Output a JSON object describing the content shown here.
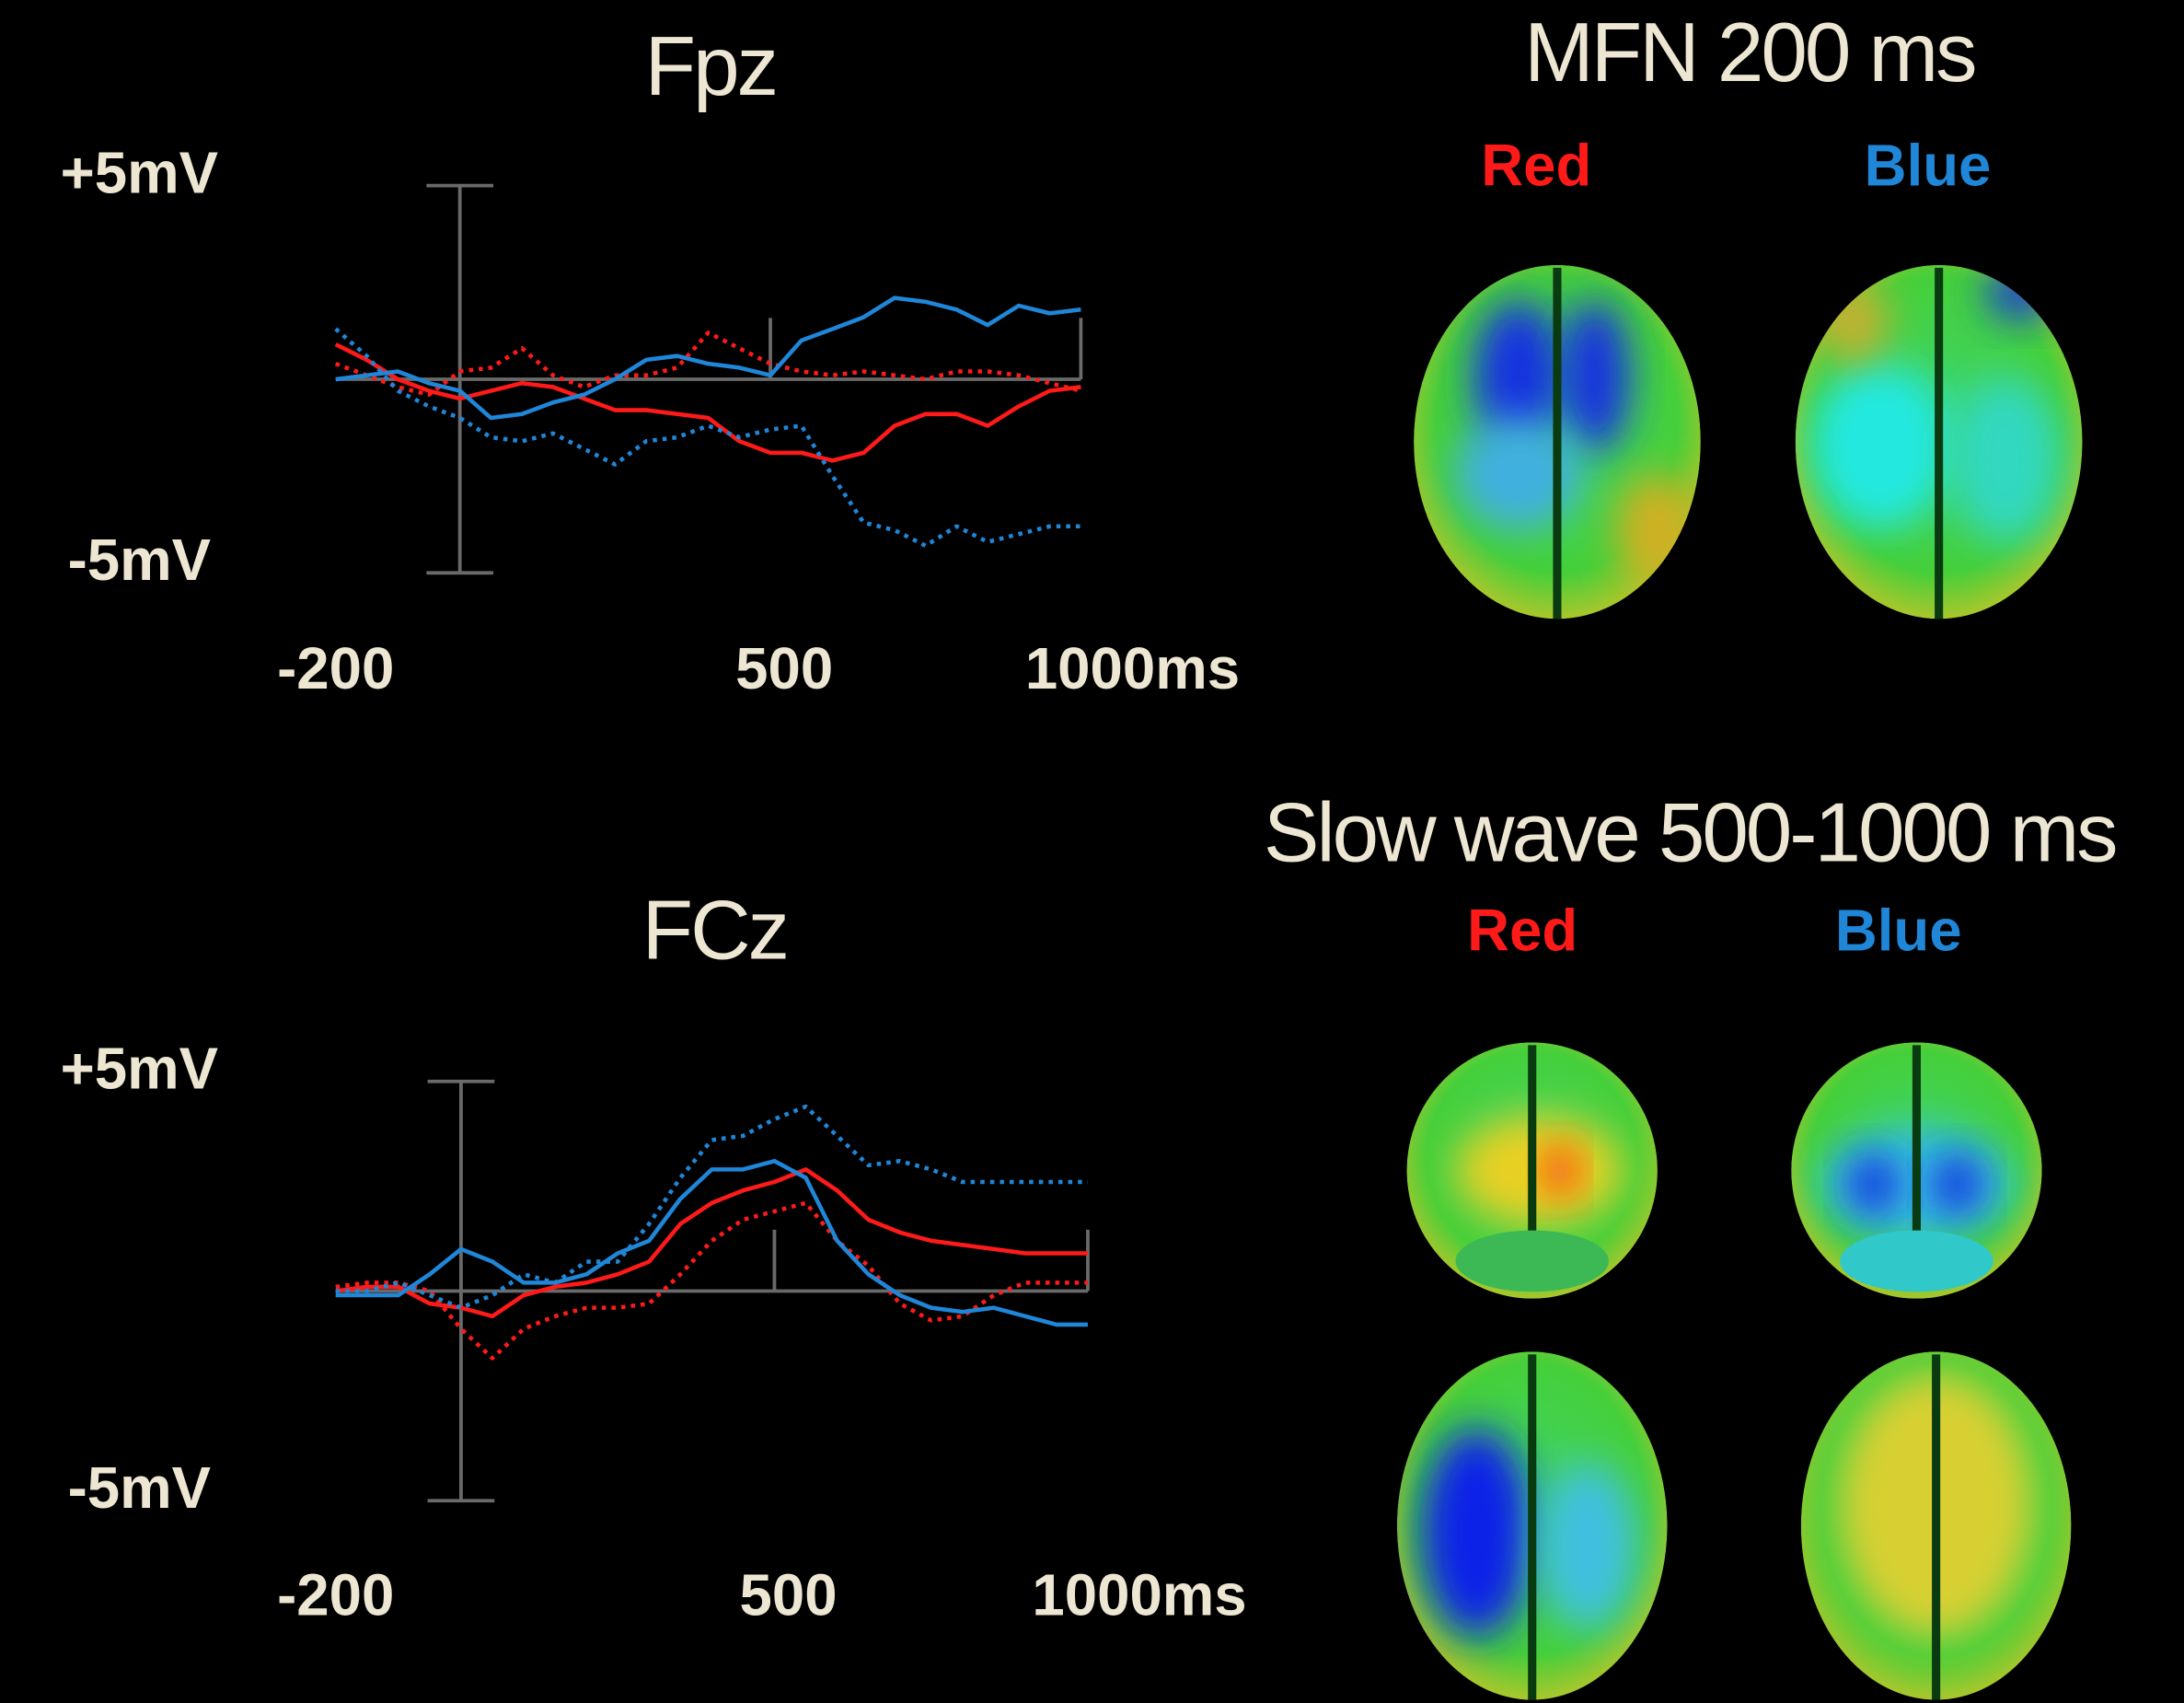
{
  "chart_data": [
    {
      "type": "line",
      "title": "Fpz",
      "x": [
        -200,
        -150,
        -100,
        -50,
        0,
        50,
        100,
        150,
        200,
        250,
        300,
        350,
        400,
        450,
        500,
        550,
        600,
        650,
        700,
        750,
        800,
        850,
        900,
        950,
        1000
      ],
      "xlim": [
        -200,
        1000
      ],
      "xticks": [
        -200,
        500,
        {
          "value": 1000,
          "label": "1000ms"
        }
      ],
      "ylim": [
        -5,
        5
      ],
      "yticks": [
        {
          "value": 5,
          "label": "+5mV"
        },
        {
          "value": -5,
          "label": "-5mV"
        }
      ],
      "series": [
        {
          "color": "#ff1a1a",
          "dashed": false,
          "values": [
            0.9,
            0.5,
            0.0,
            -0.3,
            -0.5,
            -0.3,
            -0.1,
            -0.2,
            -0.5,
            -0.8,
            -0.8,
            -0.9,
            -1.0,
            -1.6,
            -1.9,
            -1.9,
            -2.1,
            -1.9,
            -1.2,
            -0.9,
            -0.9,
            -1.2,
            -0.7,
            -0.3,
            -0.2
          ]
        },
        {
          "color": "#ff1a1a",
          "dashed": true,
          "values": [
            0.4,
            0.1,
            -0.2,
            -0.4,
            0.2,
            0.3,
            0.8,
            0.1,
            -0.2,
            0.1,
            0.1,
            0.3,
            1.2,
            0.8,
            0.4,
            0.2,
            0.1,
            0.2,
            0.1,
            0.0,
            0.2,
            0.2,
            0.1,
            -0.1,
            -0.3
          ]
        },
        {
          "color": "#1f86d8",
          "dashed": false,
          "values": [
            0.0,
            0.1,
            0.2,
            -0.1,
            -0.3,
            -1.0,
            -0.9,
            -0.6,
            -0.4,
            0.0,
            0.5,
            0.6,
            0.4,
            0.3,
            0.1,
            1.0,
            1.3,
            1.6,
            2.1,
            2.0,
            1.8,
            1.4,
            1.9,
            1.7,
            1.8
          ]
        },
        {
          "color": "#1f86d8",
          "dashed": true,
          "values": [
            1.3,
            0.6,
            -0.3,
            -0.7,
            -1.0,
            -1.5,
            -1.6,
            -1.4,
            -1.8,
            -2.2,
            -1.6,
            -1.5,
            -1.2,
            -1.5,
            -1.3,
            -1.2,
            -2.5,
            -3.7,
            -3.9,
            -4.3,
            -3.8,
            -4.2,
            -4.0,
            -3.8,
            -3.8
          ]
        }
      ]
    },
    {
      "type": "line",
      "title": "FCz",
      "x": [
        -200,
        -150,
        -100,
        -50,
        0,
        50,
        100,
        150,
        200,
        250,
        300,
        350,
        400,
        450,
        500,
        550,
        600,
        650,
        700,
        750,
        800,
        850,
        900,
        950,
        1000
      ],
      "xlim": [
        -200,
        1000
      ],
      "xticks": [
        -200,
        500,
        {
          "value": 1000,
          "label": "1000ms"
        }
      ],
      "ylim": [
        -5,
        5
      ],
      "yticks": [
        {
          "value": 5,
          "label": "+5mV"
        },
        {
          "value": -5,
          "label": "-5mV"
        }
      ],
      "series": [
        {
          "color": "#ff1a1a",
          "dashed": false,
          "values": [
            0,
            0.1,
            0.1,
            -0.3,
            -0.4,
            -0.6,
            -0.1,
            0.1,
            0.2,
            0.4,
            0.7,
            1.6,
            2.1,
            2.4,
            2.6,
            2.9,
            2.4,
            1.7,
            1.4,
            1.2,
            1.1,
            1.0,
            0.9,
            0.9,
            0.9
          ]
        },
        {
          "color": "#ff1a1a",
          "dashed": true,
          "values": [
            0.1,
            0.2,
            0.2,
            0,
            -0.9,
            -1.6,
            -0.9,
            -0.6,
            -0.4,
            -0.4,
            -0.3,
            0.4,
            1.2,
            1.7,
            1.9,
            2.1,
            1.2,
            0.6,
            -0.3,
            -0.7,
            -0.6,
            -0.1,
            0.2,
            0.2,
            0.2
          ]
        },
        {
          "color": "#1f86d8",
          "dashed": false,
          "values": [
            -0.1,
            -0.1,
            -0.1,
            0.4,
            1.0,
            0.7,
            0.2,
            0.2,
            0.4,
            0.9,
            1.2,
            2.2,
            2.9,
            2.9,
            3.1,
            2.7,
            1.2,
            0.4,
            -0.1,
            -0.4,
            -0.5,
            -0.4,
            -0.6,
            -0.8,
            -0.8
          ]
        },
        {
          "color": "#1f86d8",
          "dashed": true,
          "values": [
            0,
            0,
            0.2,
            -0.1,
            -0.4,
            -0.1,
            0.4,
            0.2,
            0.7,
            0.7,
            1.6,
            2.7,
            3.6,
            3.7,
            4.1,
            4.4,
            3.7,
            3.0,
            3.1,
            2.9,
            2.6,
            2.6,
            2.6,
            2.6,
            2.6
          ]
        }
      ]
    }
  ],
  "topomaps": [
    {
      "title": "MFN 200 ms",
      "labels": [
        "Red",
        "Blue"
      ],
      "label_colors": [
        "#ff1a1a",
        "#1f86d8"
      ]
    },
    {
      "title": "Slow wave 500-1000 ms",
      "labels": [
        "Red",
        "Blue"
      ],
      "label_colors": [
        "#ff1a1a",
        "#1f86d8"
      ]
    }
  ]
}
